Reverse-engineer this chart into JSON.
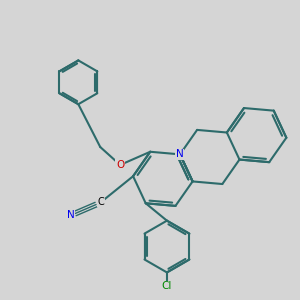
{
  "background_color": "#d5d5d5",
  "bond_color": "#2d6b6b",
  "atom_colors": {
    "N": "#0000ee",
    "O": "#cc0000",
    "Cl": "#008800",
    "C": "#000000",
    "N_nitrile": "#0000ee"
  },
  "figsize": [
    3.0,
    3.0
  ],
  "dpi": 100,
  "lw": 1.5
}
